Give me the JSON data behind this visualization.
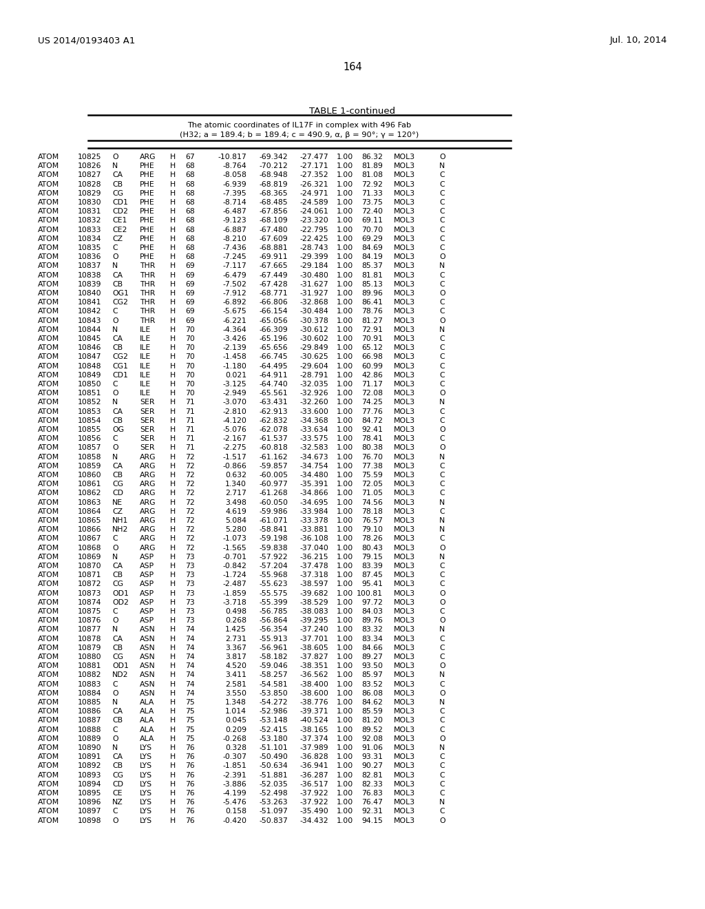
{
  "header_left": "US 2014/0193403 A1",
  "header_right": "Jul. 10, 2014",
  "page_number": "164",
  "table_title": "TABLE 1-continued",
  "table_subtitle1": "The atomic coordinates of IL17F in complex with 496 Fab",
  "table_subtitle2": "(H32; a = 189.4; b = 189.4; c = 490.9, α, β = 90°; γ = 120°)",
  "rows": [
    [
      "ATOM",
      "10825",
      "O",
      "ARG",
      "H",
      "67",
      "-10.817",
      "-69.342",
      "-27.477",
      "1.00",
      "86.32",
      "MOL3",
      "O"
    ],
    [
      "ATOM",
      "10826",
      "N",
      "PHE",
      "H",
      "68",
      "-8.764",
      "-70.212",
      "-27.171",
      "1.00",
      "81.89",
      "MOL3",
      "N"
    ],
    [
      "ATOM",
      "10827",
      "CA",
      "PHE",
      "H",
      "68",
      "-8.058",
      "-68.948",
      "-27.352",
      "1.00",
      "81.08",
      "MOL3",
      "C"
    ],
    [
      "ATOM",
      "10828",
      "CB",
      "PHE",
      "H",
      "68",
      "-6.939",
      "-68.819",
      "-26.321",
      "1.00",
      "72.92",
      "MOL3",
      "C"
    ],
    [
      "ATOM",
      "10829",
      "CG",
      "PHE",
      "H",
      "68",
      "-7.395",
      "-68.365",
      "-24.971",
      "1.00",
      "71.33",
      "MOL3",
      "C"
    ],
    [
      "ATOM",
      "10830",
      "CD1",
      "PHE",
      "H",
      "68",
      "-8.714",
      "-68.485",
      "-24.589",
      "1.00",
      "73.75",
      "MOL3",
      "C"
    ],
    [
      "ATOM",
      "10831",
      "CD2",
      "PHE",
      "H",
      "68",
      "-6.487",
      "-67.856",
      "-24.061",
      "1.00",
      "72.40",
      "MOL3",
      "C"
    ],
    [
      "ATOM",
      "10832",
      "CE1",
      "PHE",
      "H",
      "68",
      "-9.123",
      "-68.109",
      "-23.320",
      "1.00",
      "69.11",
      "MOL3",
      "C"
    ],
    [
      "ATOM",
      "10833",
      "CE2",
      "PHE",
      "H",
      "68",
      "-6.887",
      "-67.480",
      "-22.795",
      "1.00",
      "70.70",
      "MOL3",
      "C"
    ],
    [
      "ATOM",
      "10834",
      "CZ",
      "PHE",
      "H",
      "68",
      "-8.210",
      "-67.609",
      "-22.425",
      "1.00",
      "69.29",
      "MOL3",
      "C"
    ],
    [
      "ATOM",
      "10835",
      "C",
      "PHE",
      "H",
      "68",
      "-7.436",
      "-68.881",
      "-28.743",
      "1.00",
      "84.69",
      "MOL3",
      "C"
    ],
    [
      "ATOM",
      "10836",
      "O",
      "PHE",
      "H",
      "68",
      "-7.245",
      "-69.911",
      "-29.399",
      "1.00",
      "84.19",
      "MOL3",
      "O"
    ],
    [
      "ATOM",
      "10837",
      "N",
      "THR",
      "H",
      "69",
      "-7.117",
      "-67.665",
      "-29.184",
      "1.00",
      "85.37",
      "MOL3",
      "N"
    ],
    [
      "ATOM",
      "10838",
      "CA",
      "THR",
      "H",
      "69",
      "-6.479",
      "-67.449",
      "-30.480",
      "1.00",
      "81.81",
      "MOL3",
      "C"
    ],
    [
      "ATOM",
      "10839",
      "CB",
      "THR",
      "H",
      "69",
      "-7.502",
      "-67.428",
      "-31.627",
      "1.00",
      "85.13",
      "MOL3",
      "C"
    ],
    [
      "ATOM",
      "10840",
      "OG1",
      "THR",
      "H",
      "69",
      "-7.912",
      "-68.771",
      "-31.927",
      "1.00",
      "89.96",
      "MOL3",
      "O"
    ],
    [
      "ATOM",
      "10841",
      "CG2",
      "THR",
      "H",
      "69",
      "-6.892",
      "-66.806",
      "-32.868",
      "1.00",
      "86.41",
      "MOL3",
      "C"
    ],
    [
      "ATOM",
      "10842",
      "C",
      "THR",
      "H",
      "69",
      "-5.675",
      "-66.154",
      "-30.484",
      "1.00",
      "78.76",
      "MOL3",
      "C"
    ],
    [
      "ATOM",
      "10843",
      "O",
      "THR",
      "H",
      "69",
      "-6.221",
      "-65.056",
      "-30.378",
      "1.00",
      "81.27",
      "MOL3",
      "O"
    ],
    [
      "ATOM",
      "10844",
      "N",
      "ILE",
      "H",
      "70",
      "-4.364",
      "-66.309",
      "-30.612",
      "1.00",
      "72.91",
      "MOL3",
      "N"
    ],
    [
      "ATOM",
      "10845",
      "CA",
      "ILE",
      "H",
      "70",
      "-3.426",
      "-65.196",
      "-30.602",
      "1.00",
      "70.91",
      "MOL3",
      "C"
    ],
    [
      "ATOM",
      "10846",
      "CB",
      "ILE",
      "H",
      "70",
      "-2.139",
      "-65.656",
      "-29.849",
      "1.00",
      "65.12",
      "MOL3",
      "C"
    ],
    [
      "ATOM",
      "10847",
      "CG2",
      "ILE",
      "H",
      "70",
      "-1.458",
      "-66.745",
      "-30.625",
      "1.00",
      "66.98",
      "MOL3",
      "C"
    ],
    [
      "ATOM",
      "10848",
      "CG1",
      "ILE",
      "H",
      "70",
      "-1.180",
      "-64.495",
      "-29.604",
      "1.00",
      "60.99",
      "MOL3",
      "C"
    ],
    [
      "ATOM",
      "10849",
      "CD1",
      "ILE",
      "H",
      "70",
      "0.021",
      "-64.911",
      "-28.791",
      "1.00",
      "42.86",
      "MOL3",
      "C"
    ],
    [
      "ATOM",
      "10850",
      "C",
      "ILE",
      "H",
      "70",
      "-3.125",
      "-64.740",
      "-32.035",
      "1.00",
      "71.17",
      "MOL3",
      "C"
    ],
    [
      "ATOM",
      "10851",
      "O",
      "ILE",
      "H",
      "70",
      "-2.949",
      "-65.561",
      "-32.926",
      "1.00",
      "72.08",
      "MOL3",
      "O"
    ],
    [
      "ATOM",
      "10852",
      "N",
      "SER",
      "H",
      "71",
      "-3.070",
      "-63.431",
      "-32.260",
      "1.00",
      "74.25",
      "MOL3",
      "N"
    ],
    [
      "ATOM",
      "10853",
      "CA",
      "SER",
      "H",
      "71",
      "-2.810",
      "-62.913",
      "-33.600",
      "1.00",
      "77.76",
      "MOL3",
      "C"
    ],
    [
      "ATOM",
      "10854",
      "CB",
      "SER",
      "H",
      "71",
      "-4.120",
      "-62.832",
      "-34.368",
      "1.00",
      "84.72",
      "MOL3",
      "C"
    ],
    [
      "ATOM",
      "10855",
      "OG",
      "SER",
      "H",
      "71",
      "-5.076",
      "-62.078",
      "-33.634",
      "1.00",
      "92.41",
      "MOL3",
      "O"
    ],
    [
      "ATOM",
      "10856",
      "C",
      "SER",
      "H",
      "71",
      "-2.167",
      "-61.537",
      "-33.575",
      "1.00",
      "78.41",
      "MOL3",
      "C"
    ],
    [
      "ATOM",
      "10857",
      "O",
      "SER",
      "H",
      "71",
      "-2.275",
      "-60.818",
      "-32.583",
      "1.00",
      "80.38",
      "MOL3",
      "O"
    ],
    [
      "ATOM",
      "10858",
      "N",
      "ARG",
      "H",
      "72",
      "-1.517",
      "-61.162",
      "-34.673",
      "1.00",
      "76.70",
      "MOL3",
      "N"
    ],
    [
      "ATOM",
      "10859",
      "CA",
      "ARG",
      "H",
      "72",
      "-0.866",
      "-59.857",
      "-34.754",
      "1.00",
      "77.38",
      "MOL3",
      "C"
    ],
    [
      "ATOM",
      "10860",
      "CB",
      "ARG",
      "H",
      "72",
      "0.632",
      "-60.005",
      "-34.480",
      "1.00",
      "75.59",
      "MOL3",
      "C"
    ],
    [
      "ATOM",
      "10861",
      "CG",
      "ARG",
      "H",
      "72",
      "1.340",
      "-60.977",
      "-35.391",
      "1.00",
      "72.05",
      "MOL3",
      "C"
    ],
    [
      "ATOM",
      "10862",
      "CD",
      "ARG",
      "H",
      "72",
      "2.717",
      "-61.268",
      "-34.866",
      "1.00",
      "71.05",
      "MOL3",
      "C"
    ],
    [
      "ATOM",
      "10863",
      "NE",
      "ARG",
      "H",
      "72",
      "3.498",
      "-60.050",
      "-34.695",
      "1.00",
      "74.56",
      "MOL3",
      "N"
    ],
    [
      "ATOM",
      "10864",
      "CZ",
      "ARG",
      "H",
      "72",
      "4.619",
      "-59.986",
      "-33.984",
      "1.00",
      "78.18",
      "MOL3",
      "C"
    ],
    [
      "ATOM",
      "10865",
      "NH1",
      "ARG",
      "H",
      "72",
      "5.084",
      "-61.071",
      "-33.378",
      "1.00",
      "76.57",
      "MOL3",
      "N"
    ],
    [
      "ATOM",
      "10866",
      "NH2",
      "ARG",
      "H",
      "72",
      "5.280",
      "-58.841",
      "-33.881",
      "1.00",
      "79.10",
      "MOL3",
      "N"
    ],
    [
      "ATOM",
      "10867",
      "C",
      "ARG",
      "H",
      "72",
      "-1.073",
      "-59.198",
      "-36.108",
      "1.00",
      "78.26",
      "MOL3",
      "C"
    ],
    [
      "ATOM",
      "10868",
      "O",
      "ARG",
      "H",
      "72",
      "-1.565",
      "-59.838",
      "-37.040",
      "1.00",
      "80.43",
      "MOL3",
      "O"
    ],
    [
      "ATOM",
      "10869",
      "N",
      "ASP",
      "H",
      "73",
      "-0.701",
      "-57.922",
      "-36.215",
      "1.00",
      "79.15",
      "MOL3",
      "N"
    ],
    [
      "ATOM",
      "10870",
      "CA",
      "ASP",
      "H",
      "73",
      "-0.842",
      "-57.204",
      "-37.478",
      "1.00",
      "83.39",
      "MOL3",
      "C"
    ],
    [
      "ATOM",
      "10871",
      "CB",
      "ASP",
      "H",
      "73",
      "-1.724",
      "-55.968",
      "-37.318",
      "1.00",
      "87.45",
      "MOL3",
      "C"
    ],
    [
      "ATOM",
      "10872",
      "CG",
      "ASP",
      "H",
      "73",
      "-2.487",
      "-55.623",
      "-38.597",
      "1.00",
      "95.41",
      "MOL3",
      "C"
    ],
    [
      "ATOM",
      "10873",
      "OD1",
      "ASP",
      "H",
      "73",
      "-1.859",
      "-55.575",
      "-39.682",
      "1.00",
      "100.81",
      "MOL3",
      "O"
    ],
    [
      "ATOM",
      "10874",
      "OD2",
      "ASP",
      "H",
      "73",
      "-3.718",
      "-55.399",
      "-38.529",
      "1.00",
      "97.72",
      "MOL3",
      "O"
    ],
    [
      "ATOM",
      "10875",
      "C",
      "ASP",
      "H",
      "73",
      "0.498",
      "-56.785",
      "-38.083",
      "1.00",
      "84.03",
      "MOL3",
      "C"
    ],
    [
      "ATOM",
      "10876",
      "O",
      "ASP",
      "H",
      "73",
      "0.268",
      "-56.864",
      "-39.295",
      "1.00",
      "89.76",
      "MOL3",
      "O"
    ],
    [
      "ATOM",
      "10877",
      "N",
      "ASN",
      "H",
      "74",
      "1.425",
      "-56.354",
      "-37.240",
      "1.00",
      "83.32",
      "MOL3",
      "N"
    ],
    [
      "ATOM",
      "10878",
      "CA",
      "ASN",
      "H",
      "74",
      "2.731",
      "-55.913",
      "-37.701",
      "1.00",
      "83.34",
      "MOL3",
      "C"
    ],
    [
      "ATOM",
      "10879",
      "CB",
      "ASN",
      "H",
      "74",
      "3.367",
      "-56.961",
      "-38.605",
      "1.00",
      "84.66",
      "MOL3",
      "C"
    ],
    [
      "ATOM",
      "10880",
      "CG",
      "ASN",
      "H",
      "74",
      "3.817",
      "-58.182",
      "-37.827",
      "1.00",
      "89.27",
      "MOL3",
      "C"
    ],
    [
      "ATOM",
      "10881",
      "OD1",
      "ASN",
      "H",
      "74",
      "4.520",
      "-59.046",
      "-38.351",
      "1.00",
      "93.50",
      "MOL3",
      "O"
    ],
    [
      "ATOM",
      "10882",
      "ND2",
      "ASN",
      "H",
      "74",
      "3.411",
      "-58.257",
      "-36.562",
      "1.00",
      "85.97",
      "MOL3",
      "N"
    ],
    [
      "ATOM",
      "10883",
      "C",
      "ASN",
      "H",
      "74",
      "2.581",
      "-54.581",
      "-38.400",
      "1.00",
      "83.52",
      "MOL3",
      "C"
    ],
    [
      "ATOM",
      "10884",
      "O",
      "ASN",
      "H",
      "74",
      "3.550",
      "-53.850",
      "-38.600",
      "1.00",
      "86.08",
      "MOL3",
      "O"
    ],
    [
      "ATOM",
      "10885",
      "N",
      "ALA",
      "H",
      "75",
      "1.348",
      "-54.272",
      "-38.776",
      "1.00",
      "84.62",
      "MOL3",
      "N"
    ],
    [
      "ATOM",
      "10886",
      "CA",
      "ALA",
      "H",
      "75",
      "1.014",
      "-52.986",
      "-39.371",
      "1.00",
      "85.59",
      "MOL3",
      "C"
    ],
    [
      "ATOM",
      "10887",
      "CB",
      "ALA",
      "H",
      "75",
      "0.045",
      "-53.148",
      "-40.524",
      "1.00",
      "81.20",
      "MOL3",
      "C"
    ],
    [
      "ATOM",
      "10888",
      "C",
      "ALA",
      "H",
      "75",
      "0.209",
      "-52.415",
      "-38.165",
      "1.00",
      "89.52",
      "MOL3",
      "C"
    ],
    [
      "ATOM",
      "10889",
      "O",
      "ALA",
      "H",
      "75",
      "-0.268",
      "-53.180",
      "-37.374",
      "1.00",
      "92.08",
      "MOL3",
      "O"
    ],
    [
      "ATOM",
      "10890",
      "N",
      "LYS",
      "H",
      "76",
      "0.328",
      "-51.101",
      "-37.989",
      "1.00",
      "91.06",
      "MOL3",
      "N"
    ],
    [
      "ATOM",
      "10891",
      "CA",
      "LYS",
      "H",
      "76",
      "-0.307",
      "-50.490",
      "-36.828",
      "1.00",
      "93.31",
      "MOL3",
      "C"
    ],
    [
      "ATOM",
      "10892",
      "CB",
      "LYS",
      "H",
      "76",
      "-1.851",
      "-50.634",
      "-36.941",
      "1.00",
      "90.27",
      "MOL3",
      "C"
    ],
    [
      "ATOM",
      "10893",
      "CG",
      "LYS",
      "H",
      "76",
      "-2.391",
      "-51.881",
      "-36.287",
      "1.00",
      "82.81",
      "MOL3",
      "C"
    ],
    [
      "ATOM",
      "10894",
      "CD",
      "LYS",
      "H",
      "76",
      "-3.886",
      "-52.035",
      "-36.517",
      "1.00",
      "82.33",
      "MOL3",
      "C"
    ],
    [
      "ATOM",
      "10895",
      "CE",
      "LYS",
      "H",
      "76",
      "-4.199",
      "-52.498",
      "-37.922",
      "1.00",
      "76.83",
      "MOL3",
      "C"
    ],
    [
      "ATOM",
      "10896",
      "NZ",
      "LYS",
      "H",
      "76",
      "-5.476",
      "-53.263",
      "-37.922",
      "1.00",
      "76.47",
      "MOL3",
      "N"
    ],
    [
      "ATOM",
      "10897",
      "C",
      "LYS",
      "H",
      "76",
      "0.158",
      "-51.097",
      "-35.490",
      "1.00",
      "92.31",
      "MOL3",
      "C"
    ],
    [
      "ATOM",
      "10898",
      "O",
      "LYS",
      "H",
      "76",
      "-0.420",
      "-50.837",
      "-34.432",
      "1.00",
      "94.15",
      "MOL3",
      "O"
    ]
  ]
}
